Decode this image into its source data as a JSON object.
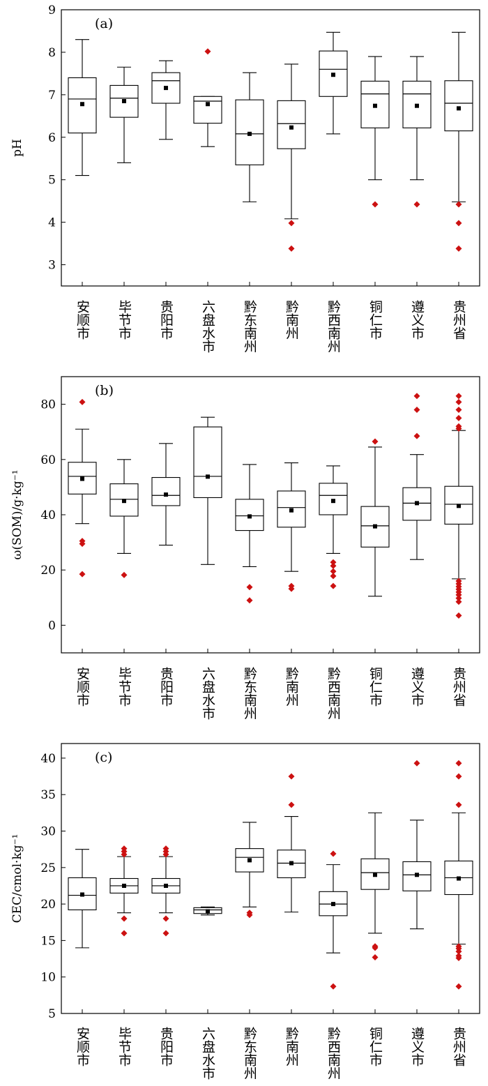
{
  "chart_data": [
    {
      "type": "box",
      "panel_label": "(a)",
      "ylabel": "pH",
      "ylim": [
        2.5,
        9
      ],
      "yticks": [
        3,
        4,
        5,
        6,
        7,
        8,
        9
      ],
      "categories": [
        "安顺市",
        "毕节市",
        "贵阳市",
        "六盘水市",
        "黔东南州",
        "黔南州",
        "黔西南州",
        "铜仁市",
        "遵义市",
        "贵州省"
      ],
      "boxes": [
        {
          "min": 5.1,
          "q1": 6.1,
          "median": 6.9,
          "q3": 7.4,
          "max": 8.3,
          "mean": 6.78,
          "outliers": []
        },
        {
          "min": 5.4,
          "q1": 6.47,
          "median": 6.92,
          "q3": 7.22,
          "max": 7.65,
          "mean": 6.85,
          "outliers": []
        },
        {
          "min": 5.95,
          "q1": 6.8,
          "median": 7.33,
          "q3": 7.52,
          "max": 7.8,
          "mean": 7.16,
          "outliers": []
        },
        {
          "min": 5.78,
          "q1": 6.33,
          "median": 6.85,
          "q3": 6.96,
          "max": 6.96,
          "mean": 6.78,
          "outliers": [
            8.02
          ]
        },
        {
          "min": 4.48,
          "q1": 5.35,
          "median": 6.08,
          "q3": 6.88,
          "max": 7.52,
          "mean": 6.08,
          "outliers": []
        },
        {
          "min": 4.08,
          "q1": 5.73,
          "median": 6.32,
          "q3": 6.86,
          "max": 7.72,
          "mean": 6.23,
          "outliers": [
            3.98,
            3.38
          ]
        },
        {
          "min": 6.08,
          "q1": 6.96,
          "median": 7.6,
          "q3": 8.03,
          "max": 8.47,
          "mean": 7.47,
          "outliers": []
        },
        {
          "min": 5.0,
          "q1": 6.22,
          "median": 7.02,
          "q3": 7.32,
          "max": 7.9,
          "mean": 6.74,
          "outliers": [
            4.42
          ]
        },
        {
          "min": 5.0,
          "q1": 6.22,
          "median": 7.02,
          "q3": 7.32,
          "max": 7.9,
          "mean": 6.74,
          "outliers": [
            4.42
          ]
        },
        {
          "min": 4.48,
          "q1": 6.15,
          "median": 6.8,
          "q3": 7.33,
          "max": 8.47,
          "mean": 6.68,
          "outliers": [
            4.42,
            3.98,
            3.38
          ]
        }
      ]
    },
    {
      "type": "box",
      "panel_label": "(b)",
      "ylabel": "ω(SOM)/g·kg⁻¹",
      "ylim": [
        -10,
        90
      ],
      "yticks": [
        0,
        20,
        40,
        60,
        80
      ],
      "categories": [
        "安顺市",
        "毕节市",
        "贵阳市",
        "六盘水市",
        "黔东南州",
        "黔南州",
        "黔西南州",
        "铜仁市",
        "遵义市",
        "贵州省"
      ],
      "boxes": [
        {
          "min": 36.8,
          "q1": 47.5,
          "median": 53.9,
          "q3": 59.0,
          "max": 71.0,
          "mean": 53.0,
          "outliers": [
            80.8,
            30.5,
            29.5,
            18.5
          ]
        },
        {
          "min": 26.0,
          "q1": 39.5,
          "median": 45.6,
          "q3": 51.2,
          "max": 60.0,
          "mean": 45.0,
          "outliers": [
            18.2
          ]
        },
        {
          "min": 29.0,
          "q1": 43.3,
          "median": 47.0,
          "q3": 53.5,
          "max": 65.8,
          "mean": 47.3,
          "outliers": []
        },
        {
          "min": 22.0,
          "q1": 46.2,
          "median": 53.9,
          "q3": 71.8,
          "max": 75.3,
          "mean": 53.8,
          "outliers": []
        },
        {
          "min": 21.2,
          "q1": 34.3,
          "median": 39.6,
          "q3": 45.6,
          "max": 58.2,
          "mean": 39.4,
          "outliers": [
            13.8,
            9.0
          ]
        },
        {
          "min": 19.5,
          "q1": 35.5,
          "median": 42.6,
          "q3": 48.6,
          "max": 58.8,
          "mean": 41.6,
          "outliers": [
            14.2,
            13.2
          ]
        },
        {
          "min": 26.0,
          "q1": 40.0,
          "median": 47.0,
          "q3": 51.4,
          "max": 57.7,
          "mean": 45.0,
          "outliers": [
            22.8,
            21.5,
            19.5,
            17.8,
            14.2
          ]
        },
        {
          "min": 10.5,
          "q1": 28.3,
          "median": 36.0,
          "q3": 43.0,
          "max": 64.5,
          "mean": 35.8,
          "outliers": [
            66.5
          ]
        },
        {
          "min": 23.8,
          "q1": 38.0,
          "median": 44.2,
          "q3": 49.8,
          "max": 61.8,
          "mean": 44.2,
          "outliers": [
            83.0,
            78.0,
            68.5
          ]
        },
        {
          "min": 16.8,
          "q1": 36.6,
          "median": 43.8,
          "q3": 50.3,
          "max": 70.5,
          "mean": 43.2,
          "outliers": [
            83.0,
            80.8,
            78.0,
            75.0,
            72.0,
            71.2,
            16.0,
            15.0,
            14.0,
            13.0,
            12.0,
            11.0,
            9.8,
            8.5,
            3.5
          ]
        }
      ]
    },
    {
      "type": "box",
      "panel_label": "(c)",
      "ylabel": "CEC/cmol·kg⁻¹",
      "ylim": [
        5,
        42
      ],
      "yticks": [
        5,
        10,
        15,
        20,
        25,
        30,
        35,
        40
      ],
      "categories": [
        "安顺市",
        "毕节市",
        "贵阳市",
        "六盘水市",
        "黔东南州",
        "黔南州",
        "黔西南州",
        "铜仁市",
        "遵义市",
        "贵州省"
      ],
      "boxes": [
        {
          "min": 14.0,
          "q1": 19.2,
          "median": 21.2,
          "q3": 23.6,
          "max": 27.5,
          "mean": 21.3,
          "outliers": []
        },
        {
          "min": 18.8,
          "q1": 21.5,
          "median": 22.5,
          "q3": 23.5,
          "max": 26.5,
          "mean": 22.5,
          "outliers": [
            27.6,
            27.2,
            26.8,
            18.0,
            16.0
          ]
        },
        {
          "min": 18.8,
          "q1": 21.5,
          "median": 22.5,
          "q3": 23.5,
          "max": 26.5,
          "mean": 22.5,
          "outliers": [
            27.6,
            27.2,
            26.8,
            18.0,
            16.0
          ]
        },
        {
          "min": 18.5,
          "q1": 18.7,
          "median": 19.2,
          "q3": 19.5,
          "max": 19.6,
          "mean": 19.0,
          "outliers": []
        },
        {
          "min": 19.6,
          "q1": 24.4,
          "median": 26.4,
          "q3": 27.6,
          "max": 31.2,
          "mean": 26.0,
          "outliers": [
            18.8,
            18.5
          ]
        },
        {
          "min": 18.9,
          "q1": 23.6,
          "median": 25.6,
          "q3": 27.4,
          "max": 32.0,
          "mean": 25.6,
          "outliers": [
            37.5,
            33.6
          ]
        },
        {
          "min": 13.3,
          "q1": 18.4,
          "median": 20.0,
          "q3": 21.7,
          "max": 25.4,
          "mean": 20.0,
          "outliers": [
            26.9,
            8.7
          ]
        },
        {
          "min": 16.0,
          "q1": 22.0,
          "median": 24.3,
          "q3": 26.2,
          "max": 32.5,
          "mean": 24.0,
          "outliers": [
            14.2,
            14.0,
            12.7
          ]
        },
        {
          "min": 16.6,
          "q1": 21.8,
          "median": 24.0,
          "q3": 25.8,
          "max": 31.5,
          "mean": 24.0,
          "outliers": [
            39.3
          ]
        },
        {
          "min": 14.5,
          "q1": 21.3,
          "median": 23.6,
          "q3": 25.9,
          "max": 32.5,
          "mean": 23.5,
          "outliers": [
            39.3,
            37.5,
            33.6,
            14.2,
            13.9,
            13.5,
            12.9,
            12.6,
            8.7
          ]
        }
      ]
    }
  ]
}
